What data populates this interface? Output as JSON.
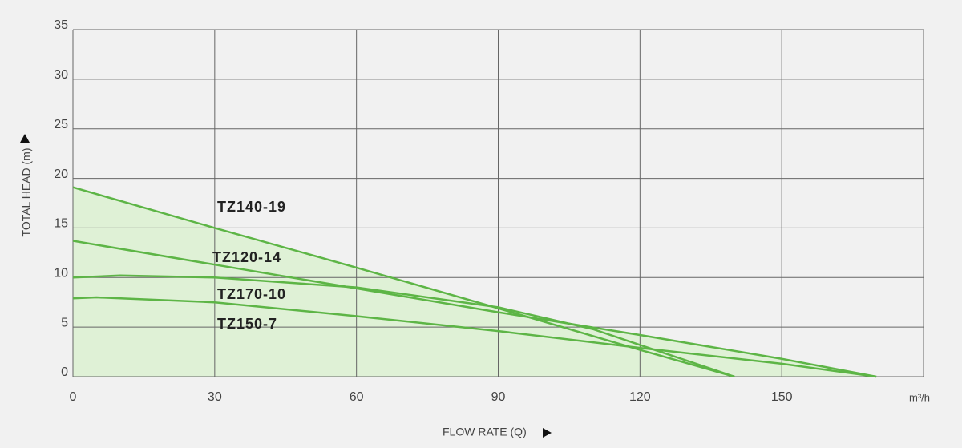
{
  "chart_data": {
    "type": "line",
    "xlabel": "FLOW RATE (Q)",
    "ylabel": "TOTAL HEAD (m)",
    "xunit": "m³/h",
    "xlim": [
      0,
      180
    ],
    "ylim": [
      0,
      35
    ],
    "xticks": [
      0,
      30,
      60,
      90,
      120,
      150
    ],
    "yticks": [
      0,
      5,
      10,
      15,
      20,
      25,
      30,
      35
    ],
    "grid": true,
    "fill": "#dff1d6",
    "series": [
      {
        "name": "TZ140-19",
        "color": "#5db546",
        "x": [
          0,
          30,
          60,
          90,
          120,
          140
        ],
        "values": [
          19.1,
          15.0,
          11.0,
          6.9,
          2.7,
          0
        ]
      },
      {
        "name": "TZ120-14",
        "color": "#5db546",
        "x": [
          0,
          30,
          60,
          90,
          120,
          150,
          170
        ],
        "values": [
          13.7,
          11.3,
          8.9,
          6.5,
          4.2,
          1.8,
          0
        ]
      },
      {
        "name": "TZ170-10",
        "color": "#5db546",
        "x": [
          0,
          10,
          30,
          60,
          90,
          110,
          120,
          130,
          140
        ],
        "values": [
          10.0,
          10.2,
          10.0,
          9.0,
          7.0,
          4.8,
          3.2,
          1.6,
          0
        ]
      },
      {
        "name": "TZ150-7",
        "color": "#5db546",
        "x": [
          0,
          5,
          30,
          60,
          90,
          120,
          150,
          170
        ],
        "values": [
          7.9,
          8.0,
          7.5,
          6.1,
          4.6,
          2.9,
          1.3,
          0
        ]
      }
    ]
  }
}
